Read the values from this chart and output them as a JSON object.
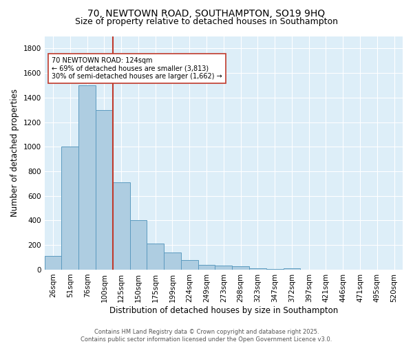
{
  "title_line1": "70, NEWTOWN ROAD, SOUTHAMPTON, SO19 9HQ",
  "title_line2": "Size of property relative to detached houses in Southampton",
  "xlabel": "Distribution of detached houses by size in Southampton",
  "ylabel": "Number of detached properties",
  "categories": [
    "26sqm",
    "51sqm",
    "76sqm",
    "100sqm",
    "125sqm",
    "150sqm",
    "175sqm",
    "199sqm",
    "224sqm",
    "249sqm",
    "273sqm",
    "298sqm",
    "323sqm",
    "347sqm",
    "372sqm",
    "397sqm",
    "421sqm",
    "446sqm",
    "471sqm",
    "495sqm",
    "520sqm"
  ],
  "values": [
    110,
    1000,
    1500,
    1300,
    710,
    400,
    215,
    140,
    80,
    40,
    35,
    25,
    12,
    8,
    12,
    0,
    0,
    0,
    0,
    0,
    0
  ],
  "bar_color": "#aecde1",
  "bar_edge_color": "#5b9abf",
  "vline_color": "#c0392b",
  "annotation_text": "70 NEWTOWN ROAD: 124sqm\n← 69% of detached houses are smaller (3,813)\n30% of semi-detached houses are larger (1,662) →",
  "annotation_box_color": "#c0392b",
  "annotation_box_facecolor": "white",
  "ylim": [
    0,
    1900
  ],
  "yticks": [
    0,
    200,
    400,
    600,
    800,
    1000,
    1200,
    1400,
    1600,
    1800
  ],
  "background_color": "#ddeef8",
  "grid_color": "white",
  "footer_text": "Contains HM Land Registry data © Crown copyright and database right 2025.\nContains public sector information licensed under the Open Government Licence v3.0.",
  "title_fontsize": 10,
  "subtitle_fontsize": 9,
  "axis_label_fontsize": 8.5,
  "tick_fontsize": 7.5,
  "annotation_fontsize": 7,
  "footer_fontsize": 6
}
